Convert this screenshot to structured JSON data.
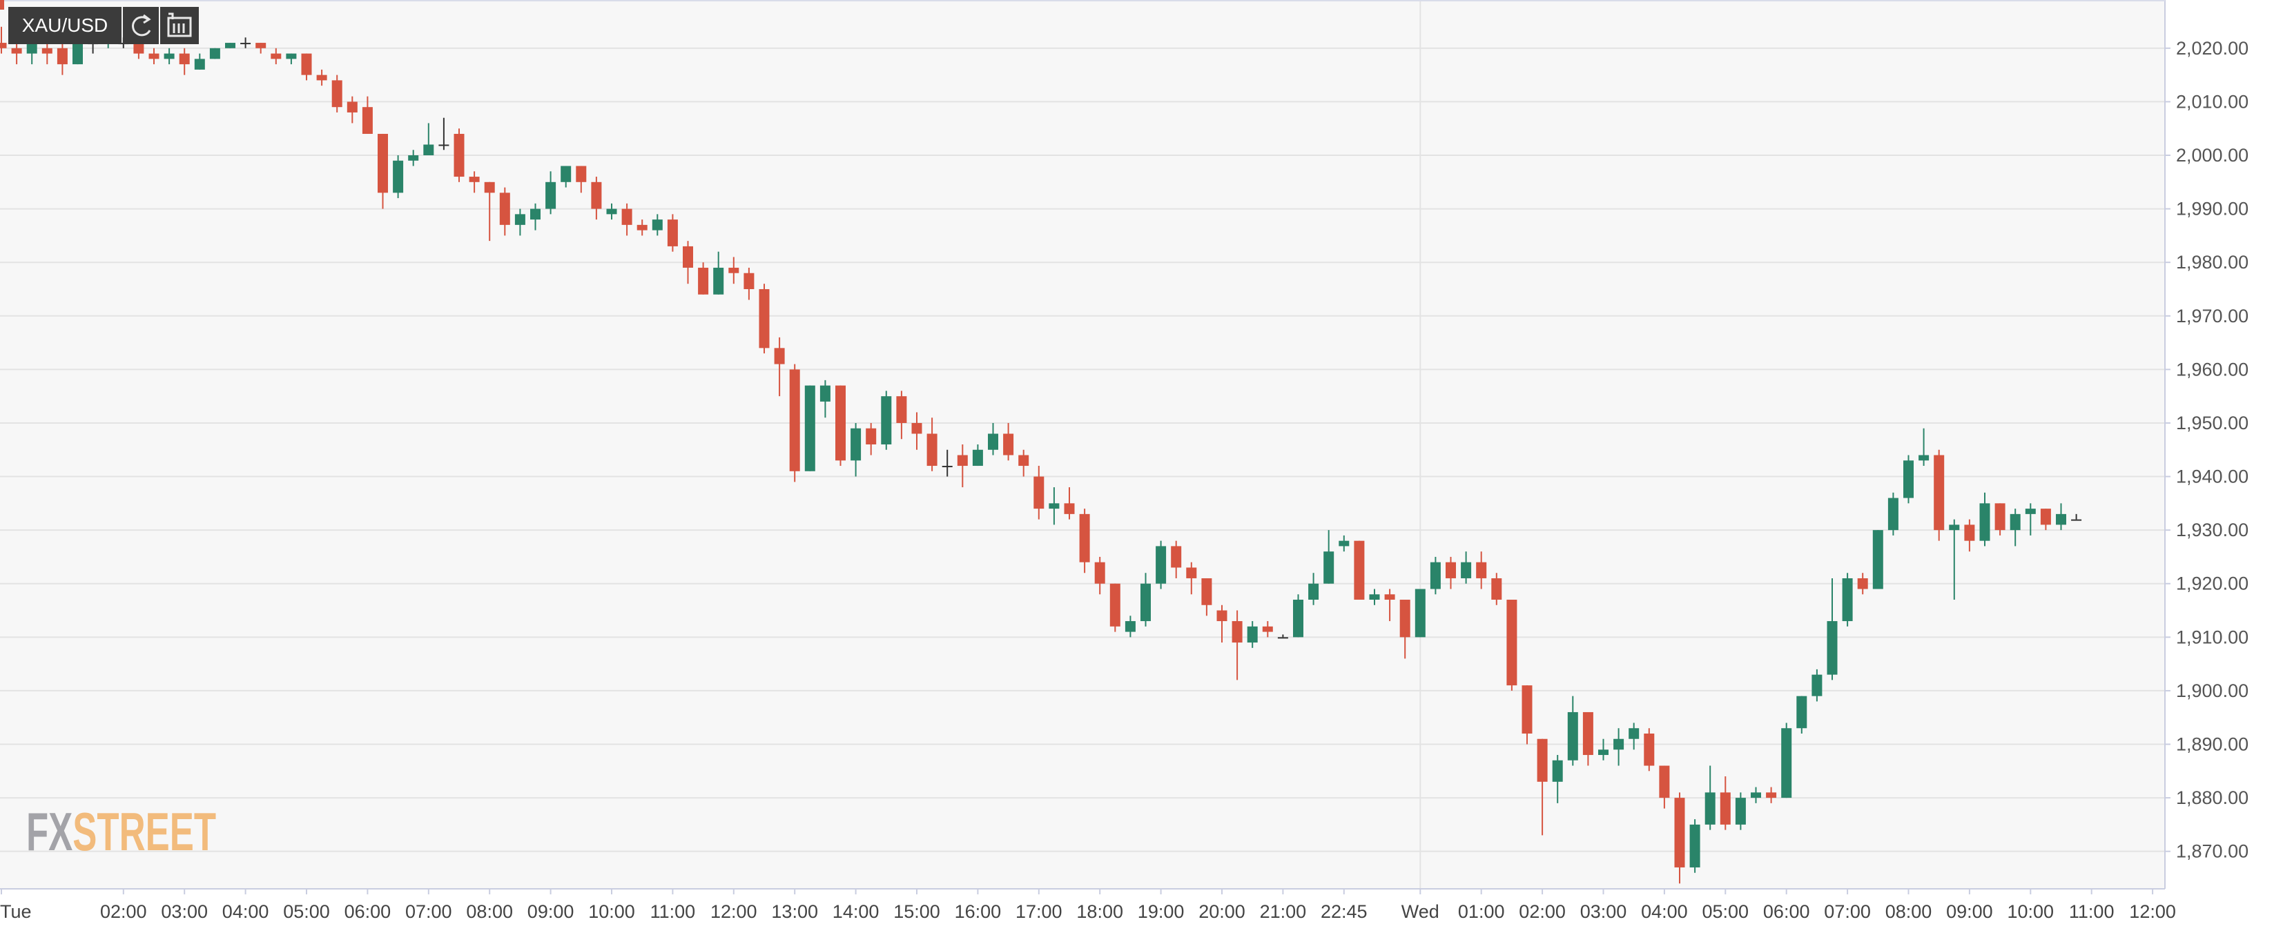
{
  "chart_data": {
    "type": "candlestick",
    "title": "XAU/USD",
    "watermark_fx": "FX",
    "watermark_street": "STREET",
    "up_color": "#2a8469",
    "down_color": "#d65440",
    "categories": [
      "Tue",
      null,
      null,
      null,
      null,
      null,
      null,
      null,
      "02:00",
      null,
      null,
      null,
      "03:00",
      null,
      null,
      null,
      "04:00",
      null,
      null,
      null,
      "05:00",
      null,
      null,
      null,
      "06:00",
      null,
      null,
      null,
      "07:00",
      null,
      null,
      null,
      "08:00",
      null,
      null,
      null,
      "09:00",
      null,
      null,
      null,
      "10:00",
      null,
      null,
      null,
      "11:00",
      null,
      null,
      null,
      "12:00",
      null,
      null,
      null,
      "13:00",
      null,
      null,
      null,
      "14:00",
      null,
      null,
      null,
      "15:00",
      null,
      null,
      null,
      "16:00",
      null,
      null,
      null,
      "17:00",
      null,
      null,
      null,
      "18:00",
      null,
      null,
      null,
      "19:00",
      null,
      null,
      null,
      "20:00",
      null,
      null,
      null,
      "21:00",
      null,
      null,
      null,
      "22:45",
      null,
      null,
      null,
      null,
      "Wed",
      null,
      null,
      null,
      "01:00",
      null,
      null,
      null,
      "02:00",
      null,
      null,
      null,
      "03:00",
      null,
      null,
      null,
      "04:00",
      null,
      null,
      null,
      "05:00",
      null,
      null,
      null,
      "06:00",
      null,
      null,
      null,
      "07:00",
      null,
      null,
      null,
      "08:00",
      null,
      null,
      null,
      "09:00",
      null,
      null,
      null,
      "10:00",
      null,
      null,
      null,
      "11:00",
      null,
      null,
      null,
      "12:00"
    ],
    "open": [
      2021,
      2020,
      2019,
      2020,
      2020,
      2017,
      2021,
      2021,
      2021,
      2021,
      2019,
      2018,
      2019,
      2016,
      2018,
      2020,
      2021,
      2021,
      2019,
      2018,
      2019,
      2015,
      2014,
      2010,
      2009,
      2004,
      1993,
      1999,
      2000,
      2002,
      2004,
      1996,
      1995,
      1993,
      1987,
      1988,
      1990,
      1995,
      1998,
      1995,
      1989,
      1990,
      1987,
      1986,
      1988,
      1983,
      1979,
      1974,
      1979,
      1978,
      1975,
      1964,
      1960,
      1941,
      1954,
      1957,
      1943,
      1949,
      1946,
      1955,
      1950,
      1948,
      1942,
      1944,
      1942,
      1945,
      1948,
      1944,
      1940,
      1934,
      1935,
      1933,
      1924,
      1920,
      1911,
      1913,
      1920,
      1927,
      1923,
      1921,
      1915,
      1913,
      1909,
      1912,
      1910,
      1910,
      1917,
      1920,
      1927,
      1928,
      1917,
      1918,
      1917,
      1910,
      1919,
      1924,
      1921,
      1924,
      1921,
      1917,
      1901,
      1891,
      1883,
      1887,
      1896,
      1888,
      1889,
      1891,
      1892,
      1886,
      1880,
      1867,
      1875,
      1881,
      1875,
      1880,
      1881,
      1880,
      1893,
      1899,
      1903,
      1913,
      1921,
      1919,
      1930,
      1936,
      1943,
      1944,
      1930,
      1931,
      1928,
      1935,
      1930,
      1933,
      1934,
      1931,
      1932,
      null,
      null,
      null,
      null,
      null
    ],
    "high": [
      2024,
      2022,
      2021,
      2021,
      2022,
      2022,
      2022,
      2023,
      2022,
      2022,
      2020,
      2020,
      2020,
      2019,
      2020,
      2021,
      2022,
      2021,
      2020,
      2019,
      2019,
      2016,
      2015,
      2011,
      2011,
      2004,
      2000,
      2001,
      2006,
      2007,
      2005,
      1997,
      1995,
      1994,
      1990,
      1991,
      1997,
      1998,
      1998,
      1996,
      1991,
      1991,
      1988,
      1989,
      1989,
      1984,
      1980,
      1982,
      1981,
      1979,
      1976,
      1966,
      1961,
      1957,
      1958,
      1957,
      1950,
      1950,
      1956,
      1956,
      1952,
      1951,
      1945,
      1946,
      1946,
      1950,
      1950,
      1945,
      1942,
      1938,
      1938,
      1934,
      1925,
      1920,
      1914,
      1922,
      1928,
      1928,
      1924,
      1921,
      1916,
      1915,
      1913,
      1913,
      1910.5,
      1918,
      1922,
      1930,
      1929,
      1928,
      1919,
      1919,
      1917,
      1919,
      1925,
      1925,
      1926,
      1926,
      1922,
      1917,
      1901,
      1891,
      1888,
      1899,
      1896,
      1891,
      1893,
      1894,
      1893,
      1886,
      1881,
      1876,
      1886,
      1884,
      1881,
      1882,
      1882,
      1894,
      1899,
      1904,
      1921,
      1922,
      1922,
      1930,
      1937,
      1944,
      1949,
      1945,
      1932,
      1932,
      1937,
      1935,
      1934,
      1935,
      1934,
      1935,
      1933,
      null,
      null,
      null,
      null,
      null
    ],
    "low": [
      2019,
      2017,
      2017,
      2017,
      2015,
      2017,
      2019,
      2020,
      2020,
      2018,
      2017,
      2017,
      2015,
      2016,
      2018,
      2020,
      2020,
      2019,
      2017,
      2017,
      2014,
      2013,
      2008,
      2006,
      2004,
      1990,
      1992,
      1998,
      2000,
      2001,
      1995,
      1993,
      1984,
      1985,
      1985,
      1986,
      1989,
      1994,
      1993,
      1988,
      1988,
      1985,
      1985,
      1985,
      1982,
      1976,
      1974,
      1974,
      1976,
      1973,
      1963,
      1955,
      1939,
      1941,
      1951,
      1942,
      1940,
      1944,
      1945,
      1947,
      1945,
      1941,
      1940,
      1938,
      1942,
      1944,
      1943,
      1940,
      1932,
      1931,
      1932,
      1922,
      1918,
      1911,
      1910,
      1912,
      1919,
      1921,
      1918,
      1914,
      1909,
      1902,
      1908,
      1910,
      1910,
      1910,
      1916,
      1920,
      1926,
      1917,
      1916,
      1913,
      1906,
      1910,
      1918,
      1919,
      1920,
      1919,
      1916,
      1900,
      1890,
      1873,
      1879,
      1886,
      1886,
      1887,
      1886,
      1889,
      1885,
      1878,
      1864,
      1866,
      1874,
      1874,
      1874,
      1879,
      1879,
      1880,
      1892,
      1898,
      1902,
      1912,
      1918,
      1919,
      1929,
      1935,
      1942,
      1928,
      1917,
      1926,
      1927,
      1929,
      1927,
      1929,
      1930,
      1930,
      1932,
      null,
      null,
      null,
      null,
      null
    ],
    "close": [
      2020,
      2019,
      2021,
      2019,
      2017,
      2021,
      2021,
      2022,
      2021,
      2019,
      2018,
      2019,
      2017,
      2018,
      2020,
      2021,
      2021,
      2020,
      2018,
      2019,
      2015,
      2014,
      2009,
      2008,
      2004,
      1993,
      1999,
      2000,
      2002,
      2002,
      1996,
      1995,
      1993,
      1987,
      1989,
      1990,
      1995,
      1998,
      1995,
      1990,
      1990,
      1987,
      1986,
      1988,
      1983,
      1979,
      1974,
      1979,
      1978,
      1975,
      1964,
      1961,
      1941,
      1957,
      1957,
      1943,
      1949,
      1946,
      1955,
      1950,
      1948,
      1942,
      1942,
      1942,
      1945,
      1948,
      1944,
      1942,
      1934,
      1935,
      1933,
      1924,
      1920,
      1912,
      1913,
      1920,
      1927,
      1923,
      1921,
      1916,
      1913,
      1909,
      1912,
      1911,
      1910,
      1917,
      1920,
      1926,
      1928,
      1917,
      1918,
      1917,
      1910,
      1919,
      1924,
      1921,
      1924,
      1921,
      1917,
      1901,
      1892,
      1883,
      1887,
      1896,
      1888,
      1889,
      1891,
      1893,
      1886,
      1880,
      1867,
      1875,
      1881,
      1875,
      1880,
      1881,
      1880,
      1893,
      1899,
      1903,
      1913,
      1921,
      1919,
      1930,
      1936,
      1943,
      1944,
      1930,
      1931,
      1928,
      1935,
      1930,
      1933,
      1934,
      1931,
      1933,
      1932,
      null,
      null,
      null,
      null,
      null
    ],
    "ylim": [
      1863,
      2029
    ],
    "yticks": [
      {
        "value": 1870,
        "label": "1,870.00"
      },
      {
        "value": 1880,
        "label": "1,880.00"
      },
      {
        "value": 1890,
        "label": "1,890.00"
      },
      {
        "value": 1900,
        "label": "1,900.00"
      },
      {
        "value": 1910,
        "label": "1,910.00"
      },
      {
        "value": 1920,
        "label": "1,920.00"
      },
      {
        "value": 1930,
        "label": "1,930.00"
      },
      {
        "value": 1940,
        "label": "1,940.00"
      },
      {
        "value": 1950,
        "label": "1,950.00"
      },
      {
        "value": 1960,
        "label": "1,960.00"
      },
      {
        "value": 1970,
        "label": "1,970.00"
      },
      {
        "value": 1980,
        "label": "1,980.00"
      },
      {
        "value": 1990,
        "label": "1,990.00"
      },
      {
        "value": 2000,
        "label": "2,000.00"
      },
      {
        "value": 2010,
        "label": "2,010.00"
      },
      {
        "value": 2020,
        "label": "2,020.00"
      }
    ],
    "grid": true
  }
}
